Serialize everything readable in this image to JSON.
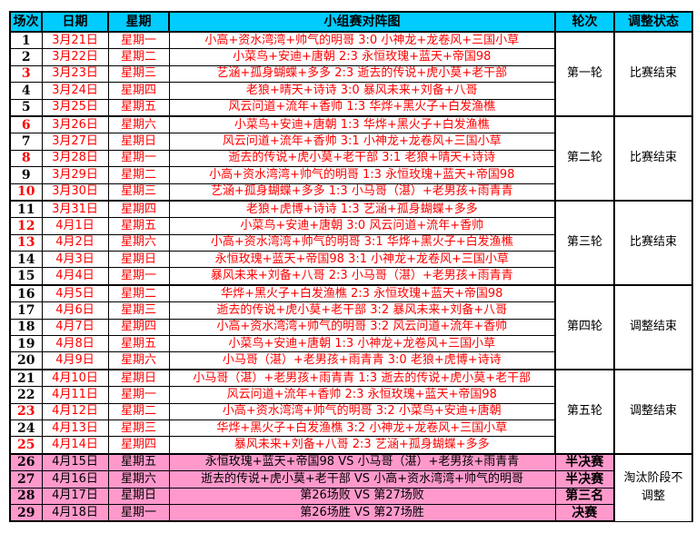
{
  "headers": {
    "match_no": "场次",
    "date": "日期",
    "weekday": "星期",
    "matchup": "小组赛对阵图",
    "round": "轮次",
    "status": "调整状态"
  },
  "colors": {
    "header_bg": "#00ccff",
    "knockout_bg": "#ff99cc",
    "text_red": "#ff0000"
  },
  "groups": [
    {
      "round": "第一轮",
      "status": "比赛结束",
      "matches": [
        {
          "no": "1",
          "date": "3月21日",
          "weekday": "星期一",
          "matchup": "小高+资水湾湾+帅气的明哥 3:0 小神龙+龙卷风+三国小草",
          "no_red": false
        },
        {
          "no": "2",
          "date": "3月22日",
          "weekday": "星期二",
          "matchup": "小菜鸟+安迪+唐朝 2:3 永恒玫瑰+蓝天+帝国98",
          "no_red": false
        },
        {
          "no": "3",
          "date": "3月23日",
          "weekday": "星期三",
          "matchup": "艺涵+孤身蝴蝶+多多 2:3 逝去的传说+虎小莫+老干部",
          "no_red": true
        },
        {
          "no": "4",
          "date": "3月24日",
          "weekday": "星期四",
          "matchup": "老狼+晴天+诗诗 3:0 暴风未来+刘备+八哥",
          "no_red": false
        },
        {
          "no": "5",
          "date": "3月25日",
          "weekday": "星期五",
          "matchup": "风云问道+流年+香帅 1:3 华烨+黑火子+白发渔樵",
          "no_red": false
        }
      ]
    },
    {
      "round": "第二轮",
      "status": "比赛结束",
      "matches": [
        {
          "no": "6",
          "date": "3月26日",
          "weekday": "星期六",
          "matchup": "小菜鸟+安迪+唐朝 1:3 华烨+黑火子+白发渔樵",
          "no_red": true
        },
        {
          "no": "7",
          "date": "3月27日",
          "weekday": "星期日",
          "matchup": "风云问道+流年+香帅 3:1 小神龙+龙卷风+三国小草",
          "no_red": false
        },
        {
          "no": "8",
          "date": "3月28日",
          "weekday": "星期一",
          "matchup": "逝去的传说+虎小莫+老干部 3:1 老狼+晴天+诗诗",
          "no_red": true
        },
        {
          "no": "9",
          "date": "3月29日",
          "weekday": "星期二",
          "matchup": "小高+资水湾湾+帅气的明哥 1:3 永恒玫瑰+蓝天+帝国98",
          "no_red": false
        },
        {
          "no": "10",
          "date": "3月30日",
          "weekday": "星期三",
          "matchup": "艺涵+孤身蝴蝶+多多 1:3 小马哥（湛）+老男孩+雨青青",
          "no_red": true
        }
      ]
    },
    {
      "round": "第三轮",
      "status": "比赛结束",
      "matches": [
        {
          "no": "11",
          "date": "3月31日",
          "weekday": "星期四",
          "matchup": "老狼+虎博+诗诗 1:3 艺涵+孤身蝴蝶+多多",
          "no_red": false
        },
        {
          "no": "12",
          "date": "4月1日",
          "weekday": "星期五",
          "matchup": "小菜鸟+安迪+唐朝 3:0 风云问道+流年+香帅",
          "no_red": true
        },
        {
          "no": "13",
          "date": "4月2日",
          "weekday": "星期六",
          "matchup": "小高+资水湾湾+帅气的明哥 3:1 华烨+黑火子+白发渔樵",
          "no_red": true
        },
        {
          "no": "14",
          "date": "4月3日",
          "weekday": "星期日",
          "matchup": "永恒玫瑰+蓝天+帝国98 3:1 小神龙+龙卷风+三国小草",
          "no_red": false
        },
        {
          "no": "15",
          "date": "4月4日",
          "weekday": "星期一",
          "matchup": "暴风未来+刘备+八哥 2:3 小马哥（湛）+老男孩+雨青青",
          "no_red": false
        }
      ]
    },
    {
      "round": "第四轮",
      "status": "调整结束",
      "matches": [
        {
          "no": "16",
          "date": "4月5日",
          "weekday": "星期二",
          "matchup": "华烨+黑火子+白发渔樵 2:3 永恒玫瑰+蓝天+帝国98",
          "no_red": false
        },
        {
          "no": "17",
          "date": "4月6日",
          "weekday": "星期三",
          "matchup": "逝去的传说+虎小莫+老干部 3:2 暴风未来+刘备+八哥",
          "no_red": false
        },
        {
          "no": "18",
          "date": "4月7日",
          "weekday": "星期四",
          "matchup": "小高+资水湾湾+帅气的明哥 3:2 风云问道+流年+香帅",
          "no_red": false
        },
        {
          "no": "19",
          "date": "4月8日",
          "weekday": "星期五",
          "matchup": "小菜鸟+安迪+唐朝 1:3 小神龙+龙卷风+三国小草",
          "no_red": false
        },
        {
          "no": "20",
          "date": "4月9日",
          "weekday": "星期六",
          "matchup": "小马哥（湛）+老男孩+雨青青 3:0 老狼+虎博+诗诗",
          "no_red": false
        }
      ]
    },
    {
      "round": "第五轮",
      "status": "调整结束",
      "matches": [
        {
          "no": "21",
          "date": "4月10日",
          "weekday": "星期日",
          "matchup": "小马哥（湛）+老男孩+雨青青 1:3 逝去的传说+虎小莫+老干部",
          "no_red": false
        },
        {
          "no": "22",
          "date": "4月11日",
          "weekday": "星期一",
          "matchup": "风云问道+流年+香帅 2:3 永恒玫瑰+蓝天+帝国98",
          "no_red": false
        },
        {
          "no": "23",
          "date": "4月12日",
          "weekday": "星期二",
          "matchup": "小高+资水湾湾+帅气的明哥 3:2 小菜鸟+安迪+唐朝",
          "no_red": true
        },
        {
          "no": "24",
          "date": "4月13日",
          "weekday": "星期三",
          "matchup": "华烨+黑火子+白发渔樵 3:2 小神龙+龙卷风+三国小草",
          "no_red": false
        },
        {
          "no": "25",
          "date": "4月14日",
          "weekday": "星期四",
          "matchup": "暴风未来+刘备+八哥 2:3 艺涵+孤身蝴蝶+多多",
          "no_red": true
        }
      ]
    }
  ],
  "knockout": {
    "status": "淘汰阶段不调整",
    "matches": [
      {
        "no": "26",
        "date": "4月15日",
        "weekday": "星期五",
        "matchup": "永恒玫瑰+蓝天+帝国98 VS 小马哥（湛）+老男孩+雨青青",
        "stage": "半决赛"
      },
      {
        "no": "27",
        "date": "4月16日",
        "weekday": "星期六",
        "matchup": "逝去的传说+虎小莫+老干部 VS 小高+资水湾湾+帅气的明哥",
        "stage": "半决赛"
      },
      {
        "no": "28",
        "date": "4月17日",
        "weekday": "星期日",
        "matchup": "第26场败 VS 第27场败",
        "stage": "第三名"
      },
      {
        "no": "29",
        "date": "4月18日",
        "weekday": "星期一",
        "matchup": "第26场胜 VS 第27场胜",
        "stage": "决赛"
      }
    ]
  }
}
